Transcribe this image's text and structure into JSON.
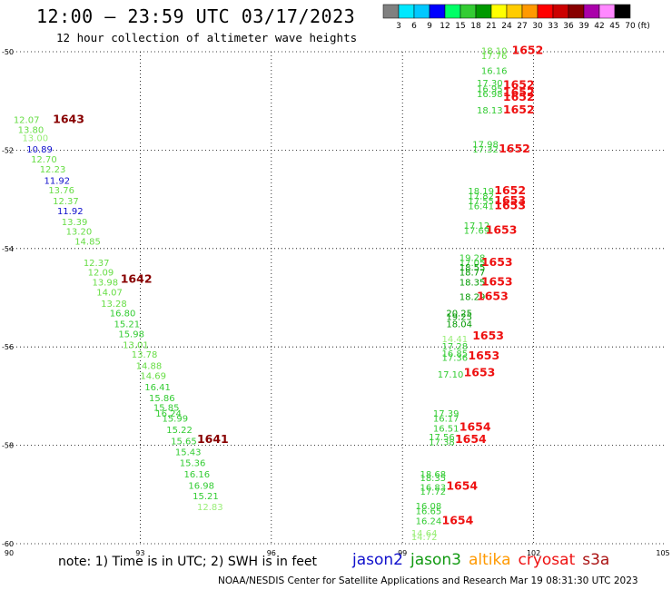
{
  "title": "12:00 — 23:59 UTC 03/17/2023",
  "subtitle": "12 hour collection of altimeter wave heights",
  "note": "note: 1) Time is in UTC; 2) SWH is in feet",
  "credit": "NOAA/NESDIS Center for Satellite Applications and Research    Mar 19 08:31:30 UTC 2023",
  "satellites": [
    {
      "name": "jason2",
      "color": "#1010cc"
    },
    {
      "name": "jason3",
      "color": "#119911"
    },
    {
      "name": "altika",
      "color": "#ff9900"
    },
    {
      "name": "cryosat",
      "color": "#ee1111"
    },
    {
      "name": "s3a",
      "color": "#aa1111"
    }
  ],
  "colorbar": {
    "unit": "(ft)",
    "labels": [
      "3",
      "6",
      "9",
      "12",
      "15",
      "18",
      "21",
      "24",
      "27",
      "30",
      "33",
      "36",
      "39",
      "42",
      "45",
      "70"
    ],
    "colors": [
      "#808080",
      "#00e8ff",
      "#00c8ff",
      "#0000ff",
      "#00ff66",
      "#33cc33",
      "#009900",
      "#ffff00",
      "#ffcc00",
      "#ff9900",
      "#ff0000",
      "#cc0000",
      "#880000",
      "#aa00aa",
      "#ff88ff",
      "#000000"
    ]
  },
  "chart_data": {
    "type": "scatter",
    "x_ticks": [
      "90",
      "93",
      "96",
      "99",
      "102",
      "105"
    ],
    "y_ticks": [
      "-50",
      "-52",
      "-54",
      "-56",
      "-58",
      "-60"
    ],
    "xlim": [
      90,
      105
    ],
    "ylim": [
      -60,
      -50
    ],
    "grid": true,
    "time_labels": [
      {
        "text": "1643",
        "lon": 91.0,
        "lat": -51.45,
        "color": "#880000"
      },
      {
        "text": "1642",
        "lon": 92.55,
        "lat": -54.7,
        "color": "#880000"
      },
      {
        "text": "1641",
        "lon": 94.3,
        "lat": -57.95,
        "color": "#880000"
      },
      {
        "text": "1652",
        "lon": 101.5,
        "lat": -50.05,
        "color": "#ee1111"
      },
      {
        "text": "1652",
        "lon": 101.3,
        "lat": -50.75,
        "color": "#ee1111"
      },
      {
        "text": "1652",
        "lon": 101.3,
        "lat": -50.9,
        "color": "#ee1111"
      },
      {
        "text": "1652",
        "lon": 101.3,
        "lat": -51.0,
        "color": "#ee1111"
      },
      {
        "text": "1652",
        "lon": 101.3,
        "lat": -51.25,
        "color": "#ee1111"
      },
      {
        "text": "1652",
        "lon": 101.2,
        "lat": -52.05,
        "color": "#ee1111"
      },
      {
        "text": "1652",
        "lon": 101.1,
        "lat": -52.9,
        "color": "#ee1111"
      },
      {
        "text": "1653",
        "lon": 101.1,
        "lat": -53.1,
        "color": "#ee1111"
      },
      {
        "text": "1653",
        "lon": 101.1,
        "lat": -53.2,
        "color": "#ee1111"
      },
      {
        "text": "1653",
        "lon": 100.9,
        "lat": -53.7,
        "color": "#ee1111"
      },
      {
        "text": "1653",
        "lon": 100.8,
        "lat": -54.35,
        "color": "#ee1111"
      },
      {
        "text": "1653",
        "lon": 100.8,
        "lat": -54.75,
        "color": "#ee1111"
      },
      {
        "text": "1653",
        "lon": 100.7,
        "lat": -55.05,
        "color": "#ee1111"
      },
      {
        "text": "1653",
        "lon": 100.6,
        "lat": -55.85,
        "color": "#ee1111"
      },
      {
        "text": "1653",
        "lon": 100.5,
        "lat": -56.25,
        "color": "#ee1111"
      },
      {
        "text": "1653",
        "lon": 100.4,
        "lat": -56.6,
        "color": "#ee1111"
      },
      {
        "text": "1654",
        "lon": 100.3,
        "lat": -57.7,
        "color": "#ee1111"
      },
      {
        "text": "1654",
        "lon": 100.2,
        "lat": -57.95,
        "color": "#ee1111"
      },
      {
        "text": "1654",
        "lon": 100.0,
        "lat": -58.9,
        "color": "#ee1111"
      },
      {
        "text": "1654",
        "lon": 99.9,
        "lat": -59.6,
        "color": "#ee1111"
      }
    ],
    "swh_points": [
      {
        "swh": "12.07",
        "lon": 90.1,
        "lat": -51.45,
        "color": "#66dd44"
      },
      {
        "swh": "13.80",
        "lon": 90.2,
        "lat": -51.65,
        "color": "#66dd44"
      },
      {
        "swh": "13.00",
        "lon": 90.3,
        "lat": -51.82,
        "color": "#99ee77"
      },
      {
        "swh": "10.89",
        "lon": 90.4,
        "lat": -52.05,
        "color": "#1010cc"
      },
      {
        "swh": "12.70",
        "lon": 90.5,
        "lat": -52.25,
        "color": "#66dd44"
      },
      {
        "swh": "12.23",
        "lon": 90.7,
        "lat": -52.45,
        "color": "#66dd44"
      },
      {
        "swh": "11.92",
        "lon": 90.8,
        "lat": -52.68,
        "color": "#1010cc"
      },
      {
        "swh": "13.76",
        "lon": 90.9,
        "lat": -52.88,
        "color": "#66dd44"
      },
      {
        "swh": "12.37",
        "lon": 91.0,
        "lat": -53.1,
        "color": "#66dd44"
      },
      {
        "swh": "11.92",
        "lon": 91.1,
        "lat": -53.3,
        "color": "#1010cc"
      },
      {
        "swh": "13.39",
        "lon": 91.2,
        "lat": -53.52,
        "color": "#66dd44"
      },
      {
        "swh": "13.20",
        "lon": 91.3,
        "lat": -53.72,
        "color": "#66dd44"
      },
      {
        "swh": "14.85",
        "lon": 91.5,
        "lat": -53.92,
        "color": "#66dd44"
      },
      {
        "swh": "12.37",
        "lon": 91.7,
        "lat": -54.35,
        "color": "#66dd44"
      },
      {
        "swh": "12.09",
        "lon": 91.8,
        "lat": -54.55,
        "color": "#66dd44"
      },
      {
        "swh": "13.98",
        "lon": 91.9,
        "lat": -54.75,
        "color": "#66dd44"
      },
      {
        "swh": "14.07",
        "lon": 92.0,
        "lat": -54.95,
        "color": "#66dd44"
      },
      {
        "swh": "13.28",
        "lon": 92.1,
        "lat": -55.18,
        "color": "#66dd44"
      },
      {
        "swh": "16.80",
        "lon": 92.3,
        "lat": -55.38,
        "color": "#33cc33"
      },
      {
        "swh": "15.21",
        "lon": 92.4,
        "lat": -55.6,
        "color": "#33cc33"
      },
      {
        "swh": "15.98",
        "lon": 92.5,
        "lat": -55.8,
        "color": "#33cc33"
      },
      {
        "swh": "13.01",
        "lon": 92.6,
        "lat": -56.02,
        "color": "#66dd44"
      },
      {
        "swh": "13.78",
        "lon": 92.8,
        "lat": -56.22,
        "color": "#66dd44"
      },
      {
        "swh": "14.88",
        "lon": 92.9,
        "lat": -56.45,
        "color": "#66dd44"
      },
      {
        "swh": "14.69",
        "lon": 93.0,
        "lat": -56.65,
        "color": "#66dd44"
      },
      {
        "swh": "16.41",
        "lon": 93.1,
        "lat": -56.88,
        "color": "#33cc33"
      },
      {
        "swh": "15.86",
        "lon": 93.2,
        "lat": -57.1,
        "color": "#33cc33"
      },
      {
        "swh": "15.85",
        "lon": 93.3,
        "lat": -57.3,
        "color": "#33cc33"
      },
      {
        "swh": "16.24",
        "lon": 93.35,
        "lat": -57.42,
        "color": "#33cc33"
      },
      {
        "swh": "15.99",
        "lon": 93.5,
        "lat": -57.52,
        "color": "#33cc33"
      },
      {
        "swh": "15.22",
        "lon": 93.6,
        "lat": -57.75,
        "color": "#33cc33"
      },
      {
        "swh": "15.65",
        "lon": 93.7,
        "lat": -57.98,
        "color": "#33cc33"
      },
      {
        "swh": "15.43",
        "lon": 93.8,
        "lat": -58.2,
        "color": "#33cc33"
      },
      {
        "swh": "15.36",
        "lon": 93.9,
        "lat": -58.42,
        "color": "#33cc33"
      },
      {
        "swh": "16.16",
        "lon": 94.0,
        "lat": -58.65,
        "color": "#33cc33"
      },
      {
        "swh": "16.98",
        "lon": 94.1,
        "lat": -58.88,
        "color": "#33cc33"
      },
      {
        "swh": "15.21",
        "lon": 94.2,
        "lat": -59.1,
        "color": "#33cc33"
      },
      {
        "swh": "12.83",
        "lon": 94.3,
        "lat": -59.32,
        "color": "#99ee77"
      },
      {
        "swh": "18.10",
        "lon": 100.8,
        "lat": -50.05,
        "color": "#66dd44"
      },
      {
        "swh": "17.76",
        "lon": 100.8,
        "lat": -50.15,
        "color": "#66dd44"
      },
      {
        "swh": "16.16",
        "lon": 100.8,
        "lat": -50.45,
        "color": "#33cc33"
      },
      {
        "swh": "17.30",
        "lon": 100.7,
        "lat": -50.7,
        "color": "#33cc33"
      },
      {
        "swh": "16.95",
        "lon": 100.7,
        "lat": -50.82,
        "color": "#33cc33"
      },
      {
        "swh": "16.98",
        "lon": 100.7,
        "lat": -50.92,
        "color": "#33cc33"
      },
      {
        "swh": "18.13",
        "lon": 100.7,
        "lat": -51.25,
        "color": "#33cc33"
      },
      {
        "swh": "17.98",
        "lon": 100.6,
        "lat": -51.95,
        "color": "#33cc33"
      },
      {
        "swh": "17.32",
        "lon": 100.6,
        "lat": -52.05,
        "color": "#33cc33"
      },
      {
        "swh": "18.19",
        "lon": 100.5,
        "lat": -52.9,
        "color": "#33cc33"
      },
      {
        "swh": "17.82",
        "lon": 100.5,
        "lat": -53.0,
        "color": "#33cc33"
      },
      {
        "swh": "17.55",
        "lon": 100.5,
        "lat": -53.1,
        "color": "#33cc33"
      },
      {
        "swh": "16.41",
        "lon": 100.5,
        "lat": -53.2,
        "color": "#33cc33"
      },
      {
        "swh": "17.12",
        "lon": 100.4,
        "lat": -53.6,
        "color": "#33cc33"
      },
      {
        "swh": "17.69",
        "lon": 100.4,
        "lat": -53.7,
        "color": "#33cc33"
      },
      {
        "swh": "19.28",
        "lon": 100.3,
        "lat": -54.25,
        "color": "#33cc33"
      },
      {
        "swh": "17.05",
        "lon": 100.3,
        "lat": -54.35,
        "color": "#33cc33"
      },
      {
        "swh": "18.55",
        "lon": 100.3,
        "lat": -54.45,
        "color": "#009900"
      },
      {
        "swh": "18.77",
        "lon": 100.3,
        "lat": -54.55,
        "color": "#009900"
      },
      {
        "swh": "18.35",
        "lon": 100.3,
        "lat": -54.75,
        "color": "#009900"
      },
      {
        "swh": "18.29",
        "lon": 100.3,
        "lat": -55.05,
        "color": "#009900"
      },
      {
        "swh": "20.25",
        "lon": 100.0,
        "lat": -55.38,
        "color": "#009900"
      },
      {
        "swh": "19.25",
        "lon": 100.0,
        "lat": -55.45,
        "color": "#009900"
      },
      {
        "swh": "18.04",
        "lon": 100.0,
        "lat": -55.6,
        "color": "#009900"
      },
      {
        "swh": "14.41",
        "lon": 99.9,
        "lat": -55.9,
        "color": "#99ee77"
      },
      {
        "swh": "17.28",
        "lon": 99.9,
        "lat": -56.05,
        "color": "#33cc33"
      },
      {
        "swh": "16.85",
        "lon": 99.9,
        "lat": -56.2,
        "color": "#33cc33"
      },
      {
        "swh": "17.36",
        "lon": 99.9,
        "lat": -56.28,
        "color": "#33cc33"
      },
      {
        "swh": "17.10",
        "lon": 99.8,
        "lat": -56.62,
        "color": "#33cc33"
      },
      {
        "swh": "17.39",
        "lon": 99.7,
        "lat": -57.42,
        "color": "#33cc33"
      },
      {
        "swh": "16.17",
        "lon": 99.7,
        "lat": -57.52,
        "color": "#33cc33"
      },
      {
        "swh": "16.51",
        "lon": 99.7,
        "lat": -57.72,
        "color": "#33cc33"
      },
      {
        "swh": "17.56",
        "lon": 99.6,
        "lat": -57.9,
        "color": "#33cc33"
      },
      {
        "swh": "17.38",
        "lon": 99.6,
        "lat": -58.0,
        "color": "#33cc33"
      },
      {
        "swh": "18.68",
        "lon": 99.4,
        "lat": -58.65,
        "color": "#33cc33"
      },
      {
        "swh": "18.35",
        "lon": 99.4,
        "lat": -58.73,
        "color": "#33cc33"
      },
      {
        "swh": "16.83",
        "lon": 99.4,
        "lat": -58.92,
        "color": "#33cc33"
      },
      {
        "swh": "17.72",
        "lon": 99.4,
        "lat": -59.0,
        "color": "#33cc33"
      },
      {
        "swh": "16.08",
        "lon": 99.3,
        "lat": -59.3,
        "color": "#33cc33"
      },
      {
        "swh": "16.65",
        "lon": 99.3,
        "lat": -59.4,
        "color": "#33cc33"
      },
      {
        "swh": "16.24",
        "lon": 99.3,
        "lat": -59.6,
        "color": "#33cc33"
      },
      {
        "swh": "14.64",
        "lon": 99.2,
        "lat": -59.85,
        "color": "#99ee77"
      },
      {
        "swh": "14.72",
        "lon": 99.2,
        "lat": -59.93,
        "color": "#99ee77"
      }
    ]
  }
}
